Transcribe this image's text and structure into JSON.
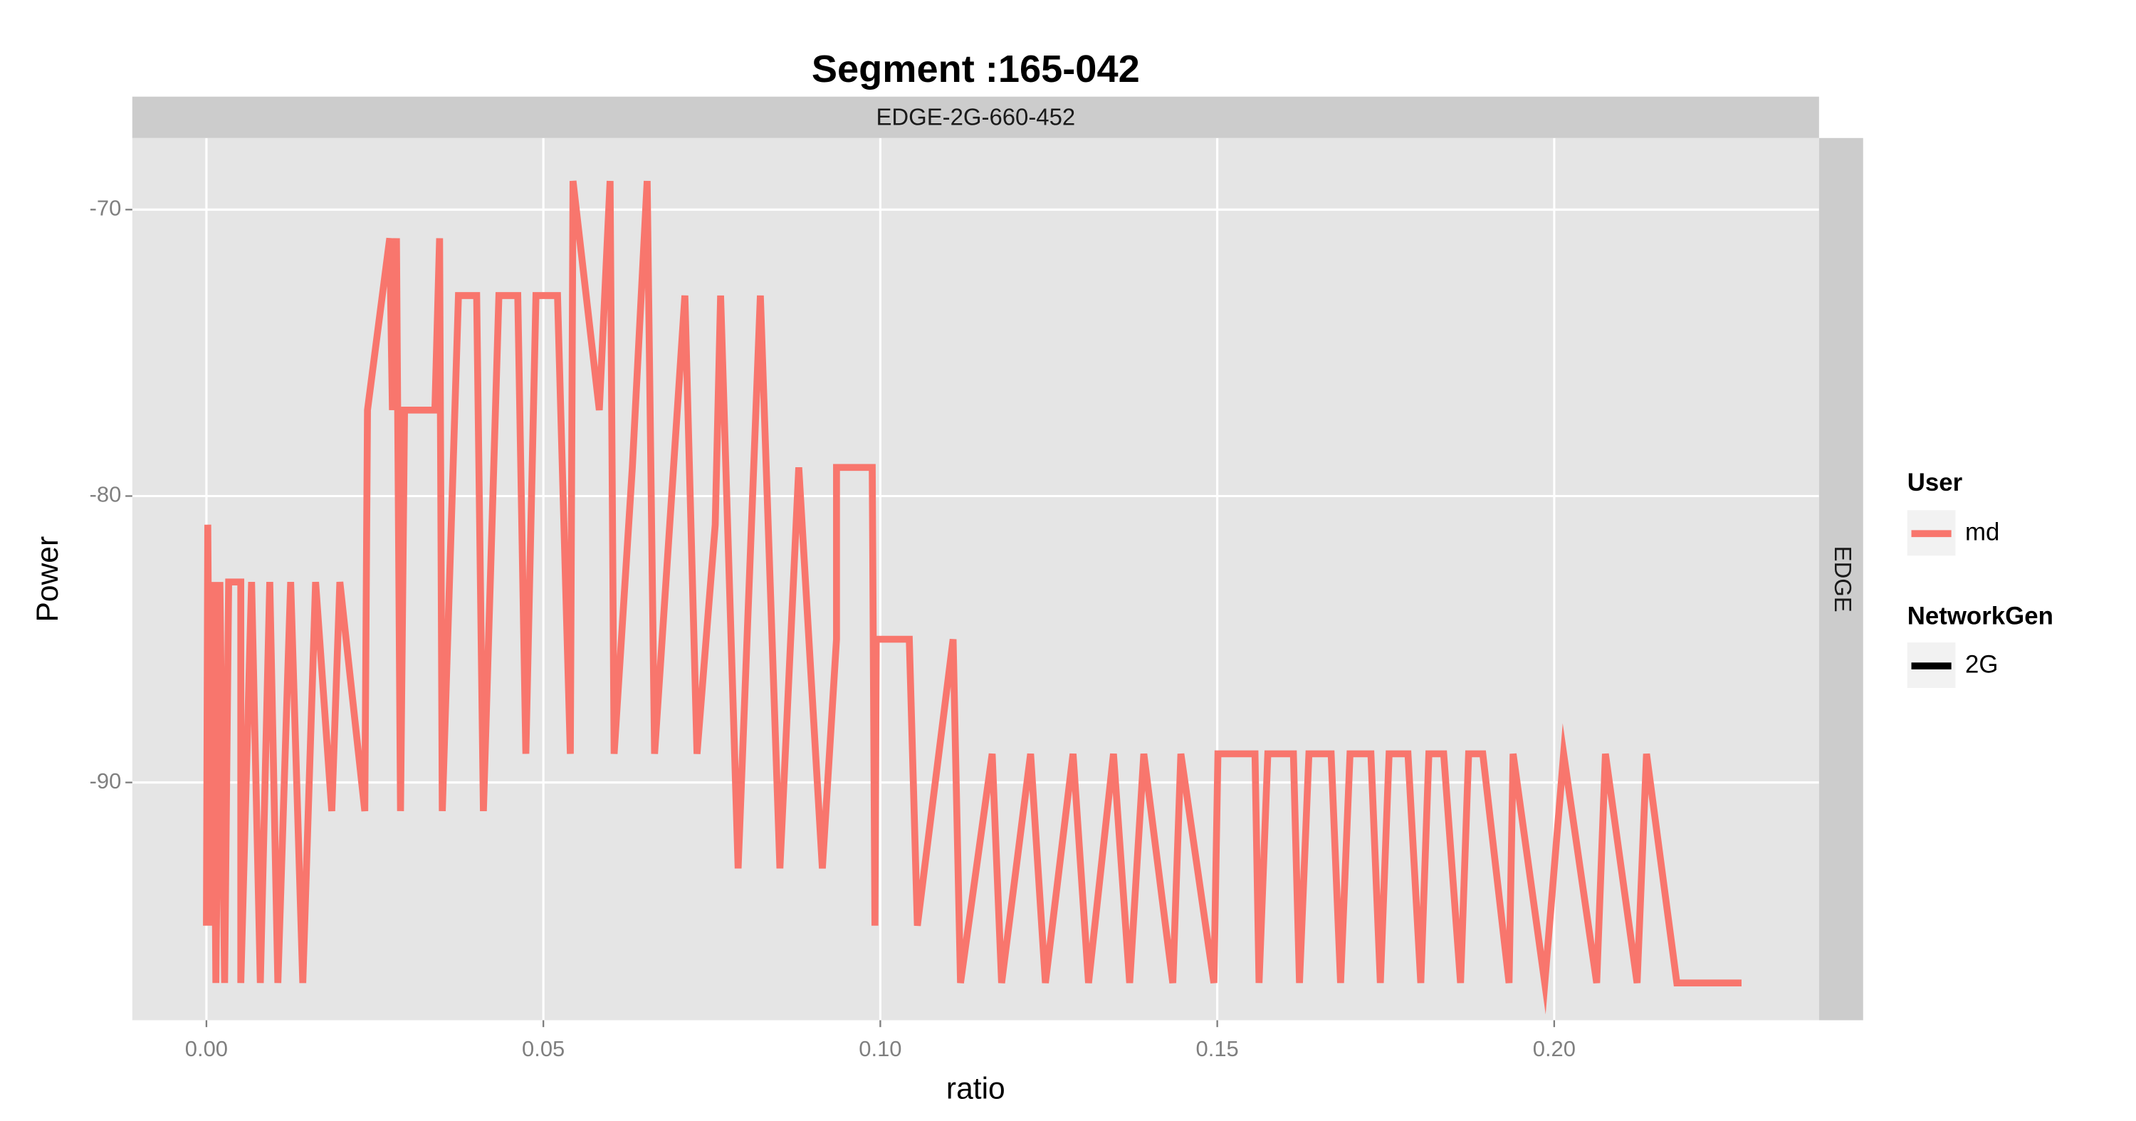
{
  "chart_data": {
    "type": "line",
    "title": "Segment :165-042",
    "facet_top": "EDGE-2G-660-452",
    "facet_right": "EDGE",
    "x_label": "ratio",
    "y_label": "Power",
    "xlim": [
      -0.011,
      0.2393
    ],
    "ylim": [
      -98.3,
      -67.5
    ],
    "xticks": [
      {
        "value": 0,
        "label": "0.00"
      },
      {
        "value": 0.05,
        "label": "0.05"
      },
      {
        "value": 0.1,
        "label": "0.10"
      },
      {
        "value": 0.15,
        "label": "0.15"
      },
      {
        "value": 0.2,
        "label": "0.20"
      }
    ],
    "yticks": [
      -70,
      -80,
      -90
    ],
    "grid": true,
    "legend": {
      "color_title": "User",
      "linetype_title": "NetworkGen",
      "linetype_entries": [
        "2G"
      ]
    },
    "series": [
      {
        "name": "md",
        "color": "#F8766D",
        "x": [
          0,
          0.0002,
          0.0006,
          0.001,
          0.0014,
          0.002,
          0.0027,
          0.0033,
          0.0051,
          0.0051,
          0.0067,
          0.008,
          0.0094,
          0.0106,
          0.0125,
          0.0143,
          0.0162,
          0.0186,
          0.0198,
          0.0235,
          0.0239,
          0.0272,
          0.0276,
          0.0282,
          0.0288,
          0.0294,
          0.0339,
          0.0346,
          0.035,
          0.0374,
          0.0401,
          0.0411,
          0.0434,
          0.0462,
          0.0474,
          0.0489,
          0.0521,
          0.054,
          0.0544,
          0.0583,
          0.0599,
          0.0605,
          0.0632,
          0.0654,
          0.0665,
          0.071,
          0.0728,
          0.0755,
          0.0763,
          0.0789,
          0.0822,
          0.0851,
          0.0879,
          0.0914,
          0.0935,
          0.0935,
          0.0988,
          0.0992,
          0.0994,
          0.1043,
          0.1055,
          0.1108,
          0.1119,
          0.1166,
          0.118,
          0.1223,
          0.1245,
          0.1286,
          0.1309,
          0.1346,
          0.137,
          0.1391,
          0.1434,
          0.1446,
          0.1495,
          0.1501,
          0.1556,
          0.1562,
          0.1575,
          0.1613,
          0.1622,
          0.1636,
          0.1669,
          0.1683,
          0.1697,
          0.1728,
          0.1742,
          0.1755,
          0.1783,
          0.1802,
          0.1814,
          0.1836,
          0.1861,
          0.1873,
          0.1894,
          0.1933,
          0.1939,
          0.1986,
          0.2014,
          0.2063,
          0.2076,
          0.2123,
          0.2137,
          0.2182,
          0.2278
        ],
        "values": [
          -95,
          -81,
          -95,
          -83,
          -97,
          -83,
          -97,
          -83,
          -83,
          -97,
          -83,
          -97,
          -83,
          -97,
          -83,
          -97,
          -83,
          -91,
          -83,
          -91,
          -77,
          -71,
          -77,
          -71,
          -91,
          -77,
          -77,
          -71,
          -91,
          -73,
          -73,
          -91,
          -73,
          -73,
          -89,
          -73,
          -73,
          -89,
          -69,
          -77,
          -69,
          -89,
          -79,
          -69,
          -89,
          -73,
          -89,
          -81,
          -73,
          -93,
          -73,
          -93,
          -79,
          -93,
          -85,
          -79,
          -79,
          -95,
          -85,
          -85,
          -95,
          -85,
          -97,
          -89,
          -97,
          -89,
          -97,
          -89,
          -97,
          -89,
          -97,
          -89,
          -97,
          -89,
          -97,
          -89,
          -89,
          -97,
          -89,
          -89,
          -97,
          -89,
          -89,
          -97,
          -89,
          -89,
          -97,
          -89,
          -89,
          -97,
          -89,
          -89,
          -97,
          -89,
          -89,
          -97,
          -89,
          -97,
          -89,
          -97,
          -89,
          -97,
          -89,
          -97,
          -97
        ]
      }
    ]
  }
}
